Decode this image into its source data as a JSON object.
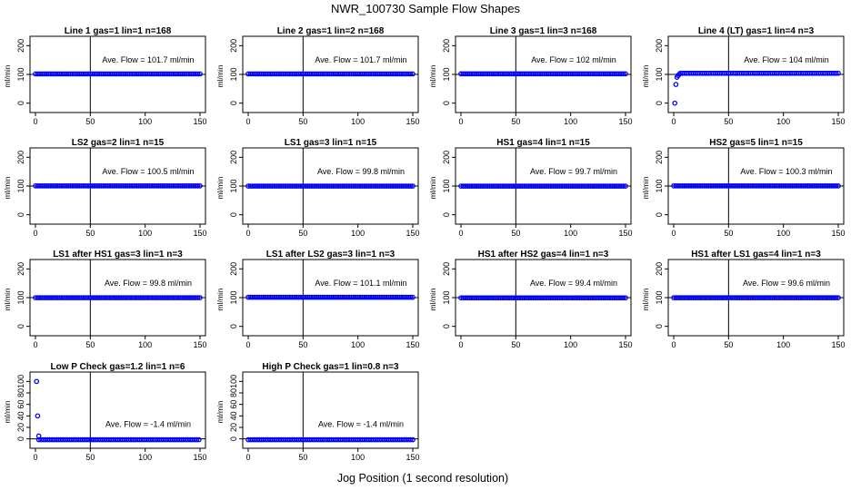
{
  "title": "NWR_100730  Sample Flow Shapes",
  "xlabel": "Jog Position (1 second resolution)",
  "colors": {
    "points": "#0000ff",
    "axes": "#000000",
    "background": "#ffffff"
  },
  "chart_data": [
    {
      "type": "scatter",
      "title": "Line 1 gas=1 lin=1 n=168",
      "ylabel": "ml/min",
      "xlim": [
        0,
        150
      ],
      "ylim": [
        -20,
        220
      ],
      "xticks": [
        "0",
        "50",
        "100",
        "150"
      ],
      "yticks": [
        "0",
        "100",
        "200"
      ],
      "vline": 50,
      "hline": 100,
      "annotation": "Ave. Flow =  101.7  ml/min",
      "mean": 101.7,
      "series": [
        {
          "name": "flow",
          "x_range": [
            0,
            150
          ],
          "y_value": 101.7
        }
      ]
    },
    {
      "type": "scatter",
      "title": "Line 2 gas=1 lin=2 n=168",
      "ylabel": "ml/min",
      "xlim": [
        0,
        150
      ],
      "ylim": [
        -20,
        220
      ],
      "xticks": [
        "0",
        "50",
        "100",
        "150"
      ],
      "yticks": [
        "0",
        "100",
        "200"
      ],
      "vline": 50,
      "hline": 100,
      "annotation": "Ave. Flow =  101.7  ml/min",
      "mean": 101.7,
      "series": [
        {
          "name": "flow",
          "x_range": [
            0,
            150
          ],
          "y_value": 101.7
        }
      ]
    },
    {
      "type": "scatter",
      "title": "Line 3 gas=1 lin=3 n=168",
      "ylabel": "ml/min",
      "xlim": [
        0,
        150
      ],
      "ylim": [
        -20,
        220
      ],
      "xticks": [
        "0",
        "50",
        "100",
        "150"
      ],
      "yticks": [
        "0",
        "100",
        "200"
      ],
      "vline": 50,
      "hline": 100,
      "annotation": "Ave. Flow =  102  ml/min",
      "mean": 102,
      "series": [
        {
          "name": "flow",
          "x_range": [
            0,
            150
          ],
          "y_value": 102
        }
      ]
    },
    {
      "type": "scatter",
      "title": "Line 4 (LT) gas=1 lin=4 n=3",
      "ylabel": "ml/min",
      "xlim": [
        0,
        150
      ],
      "ylim": [
        -20,
        220
      ],
      "xticks": [
        "0",
        "50",
        "100",
        "150"
      ],
      "yticks": [
        "0",
        "100",
        "200"
      ],
      "vline": 50,
      "hline": 100,
      "annotation": "Ave. Flow =  104  ml/min",
      "mean": 104,
      "series": [
        {
          "name": "flow",
          "x_range": [
            6,
            150
          ],
          "y_value": 104,
          "extra_points": [
            [
              1,
              0
            ],
            [
              2,
              65
            ],
            [
              3,
              90
            ],
            [
              4,
              96
            ],
            [
              5,
              100
            ]
          ]
        }
      ]
    },
    {
      "type": "scatter",
      "title": "LS2 gas=2 lin=1 n=15",
      "ylabel": "ml/min",
      "xlim": [
        0,
        150
      ],
      "ylim": [
        -20,
        220
      ],
      "xticks": [
        "0",
        "50",
        "100",
        "150"
      ],
      "yticks": [
        "0",
        "100",
        "200"
      ],
      "vline": 50,
      "hline": 100,
      "annotation": "Ave. Flow =  100.5  ml/min",
      "mean": 100.5,
      "series": [
        {
          "name": "flow",
          "x_range": [
            0,
            150
          ],
          "y_value": 100.5
        }
      ]
    },
    {
      "type": "scatter",
      "title": "LS1 gas=3 lin=1 n=15",
      "ylabel": "ml/min",
      "xlim": [
        0,
        150
      ],
      "ylim": [
        -20,
        220
      ],
      "xticks": [
        "0",
        "50",
        "100",
        "150"
      ],
      "yticks": [
        "0",
        "100",
        "200"
      ],
      "vline": 50,
      "hline": 100,
      "annotation": "Ave. Flow =  99.8  ml/min",
      "mean": 99.8,
      "series": [
        {
          "name": "flow",
          "x_range": [
            0,
            150
          ],
          "y_value": 99.8
        }
      ]
    },
    {
      "type": "scatter",
      "title": "HS1 gas=4 lin=1 n=15",
      "ylabel": "ml/min",
      "xlim": [
        0,
        150
      ],
      "ylim": [
        -20,
        220
      ],
      "xticks": [
        "0",
        "50",
        "100",
        "150"
      ],
      "yticks": [
        "0",
        "100",
        "200"
      ],
      "vline": 50,
      "hline": 100,
      "annotation": "Ave. Flow =  99.7  ml/min",
      "mean": 99.7,
      "series": [
        {
          "name": "flow",
          "x_range": [
            0,
            150
          ],
          "y_value": 99.7
        }
      ]
    },
    {
      "type": "scatter",
      "title": "HS2 gas=5 lin=1 n=15",
      "ylabel": "ml/min",
      "xlim": [
        0,
        150
      ],
      "ylim": [
        -20,
        220
      ],
      "xticks": [
        "0",
        "50",
        "100",
        "150"
      ],
      "yticks": [
        "0",
        "100",
        "200"
      ],
      "vline": 50,
      "hline": 100,
      "annotation": "Ave. Flow =  100.3  ml/min",
      "mean": 100.3,
      "series": [
        {
          "name": "flow",
          "x_range": [
            0,
            150
          ],
          "y_value": 100.3
        }
      ]
    },
    {
      "type": "scatter",
      "title": "LS1 after HS1 gas=3 lin=1 n=3",
      "ylabel": "ml/min",
      "xlim": [
        0,
        150
      ],
      "ylim": [
        -20,
        220
      ],
      "xticks": [
        "0",
        "50",
        "100",
        "150"
      ],
      "yticks": [
        "0",
        "100",
        "200"
      ],
      "vline": 50,
      "hline": 100,
      "annotation": "Ave. Flow =  99.8  ml/min",
      "mean": 99.8,
      "series": [
        {
          "name": "flow",
          "x_range": [
            0,
            150
          ],
          "y_value": 99.8
        }
      ]
    },
    {
      "type": "scatter",
      "title": "LS1 after LS2 gas=3 lin=1 n=3",
      "ylabel": "ml/min",
      "xlim": [
        0,
        150
      ],
      "ylim": [
        -20,
        220
      ],
      "xticks": [
        "0",
        "50",
        "100",
        "150"
      ],
      "yticks": [
        "0",
        "100",
        "200"
      ],
      "vline": 50,
      "hline": 100,
      "annotation": "Ave. Flow =  101.1  ml/min",
      "mean": 101.1,
      "series": [
        {
          "name": "flow",
          "x_range": [
            0,
            150
          ],
          "y_value": 101.1
        }
      ]
    },
    {
      "type": "scatter",
      "title": "HS1 after HS2 gas=4 lin=1 n=3",
      "ylabel": "ml/min",
      "xlim": [
        0,
        150
      ],
      "ylim": [
        -20,
        220
      ],
      "xticks": [
        "0",
        "50",
        "100",
        "150"
      ],
      "yticks": [
        "0",
        "100",
        "200"
      ],
      "vline": 50,
      "hline": 100,
      "annotation": "Ave. Flow =  99.4  ml/min",
      "mean": 99.4,
      "series": [
        {
          "name": "flow",
          "x_range": [
            0,
            150
          ],
          "y_value": 99.4
        }
      ]
    },
    {
      "type": "scatter",
      "title": "HS1 after LS1 gas=4 lin=1 n=3",
      "ylabel": "ml/min",
      "xlim": [
        0,
        150
      ],
      "ylim": [
        -20,
        220
      ],
      "xticks": [
        "0",
        "50",
        "100",
        "150"
      ],
      "yticks": [
        "0",
        "100",
        "200"
      ],
      "vline": 50,
      "hline": 100,
      "annotation": "Ave. Flow =  99.6  ml/min",
      "mean": 99.6,
      "series": [
        {
          "name": "flow",
          "x_range": [
            0,
            150
          ],
          "y_value": 99.6
        }
      ]
    },
    {
      "type": "scatter",
      "title": "Low P Check gas=1.2 lin=1 n=6",
      "ylabel": "ml/min",
      "xlim": [
        0,
        150
      ],
      "ylim": [
        -10,
        110
      ],
      "xticks": [
        "0",
        "50",
        "100",
        "150"
      ],
      "yticks": [
        "0",
        "20",
        "40",
        "60",
        "80",
        "100"
      ],
      "vline": 50,
      "hline": 0,
      "annotation": "Ave. Flow =  -1.4  ml/min",
      "mean": -1.4,
      "series": [
        {
          "name": "flow",
          "x_range": [
            3,
            150
          ],
          "y_value": -1.4,
          "extra_points": [
            [
              1,
              100
            ],
            [
              2,
              40
            ],
            [
              3,
              5
            ]
          ]
        }
      ]
    },
    {
      "type": "scatter",
      "title": "High P Check gas=1 lin=0.8 n=3",
      "ylabel": "ml/min",
      "xlim": [
        0,
        150
      ],
      "ylim": [
        -10,
        110
      ],
      "xticks": [
        "0",
        "50",
        "100",
        "150"
      ],
      "yticks": [
        "0",
        "20",
        "40",
        "60",
        "80",
        "100"
      ],
      "vline": 50,
      "hline": 0,
      "annotation": "Ave. Flow =  -1.4  ml/min",
      "mean": -1.4,
      "series": [
        {
          "name": "flow",
          "x_range": [
            0,
            150
          ],
          "y_value": -1.4
        }
      ]
    }
  ]
}
